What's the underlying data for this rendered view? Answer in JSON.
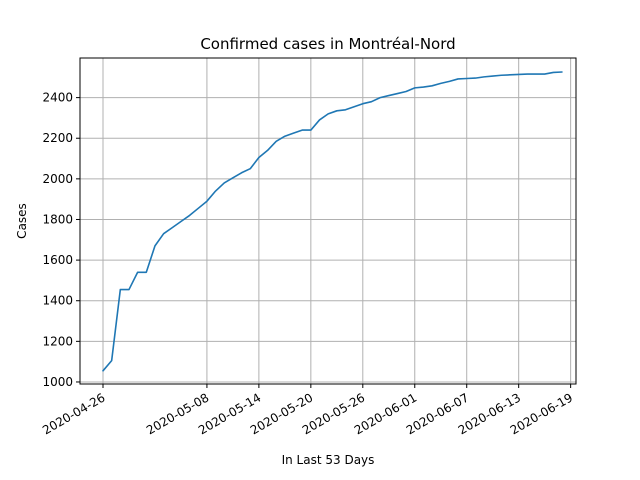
{
  "chart_data": {
    "type": "line",
    "title": "Confirmed cases in Montréal-Nord",
    "xlabel": "In Last 53 Days",
    "ylabel": "Cases",
    "x_ticks": [
      "2020-04-26",
      "2020-05-08",
      "2020-05-14",
      "2020-05-20",
      "2020-05-26",
      "2020-06-01",
      "2020-06-07",
      "2020-06-13",
      "2020-06-19",
      ""
    ],
    "y_ticks": [
      1000,
      1200,
      1400,
      1600,
      1800,
      2000,
      2200,
      2400
    ],
    "ylim": [
      990,
      2595
    ],
    "grid": true,
    "series": [
      {
        "color": "#1f77b4",
        "values": [
          1055,
          1105,
          1455,
          1455,
          1540,
          1540,
          1670,
          1730,
          1760,
          1790,
          1820,
          1855,
          1890,
          1940,
          1980,
          2005,
          2030,
          2050,
          2105,
          2140,
          2185,
          2210,
          2225,
          2240,
          2240,
          2290,
          2320,
          2335,
          2340,
          2355,
          2370,
          2380,
          2400,
          2410,
          2420,
          2430,
          2448,
          2452,
          2458,
          2470,
          2480,
          2492,
          2494,
          2496,
          2502,
          2506,
          2510,
          2512,
          2514,
          2516,
          2516,
          2516,
          2524,
          2526
        ]
      }
    ]
  }
}
